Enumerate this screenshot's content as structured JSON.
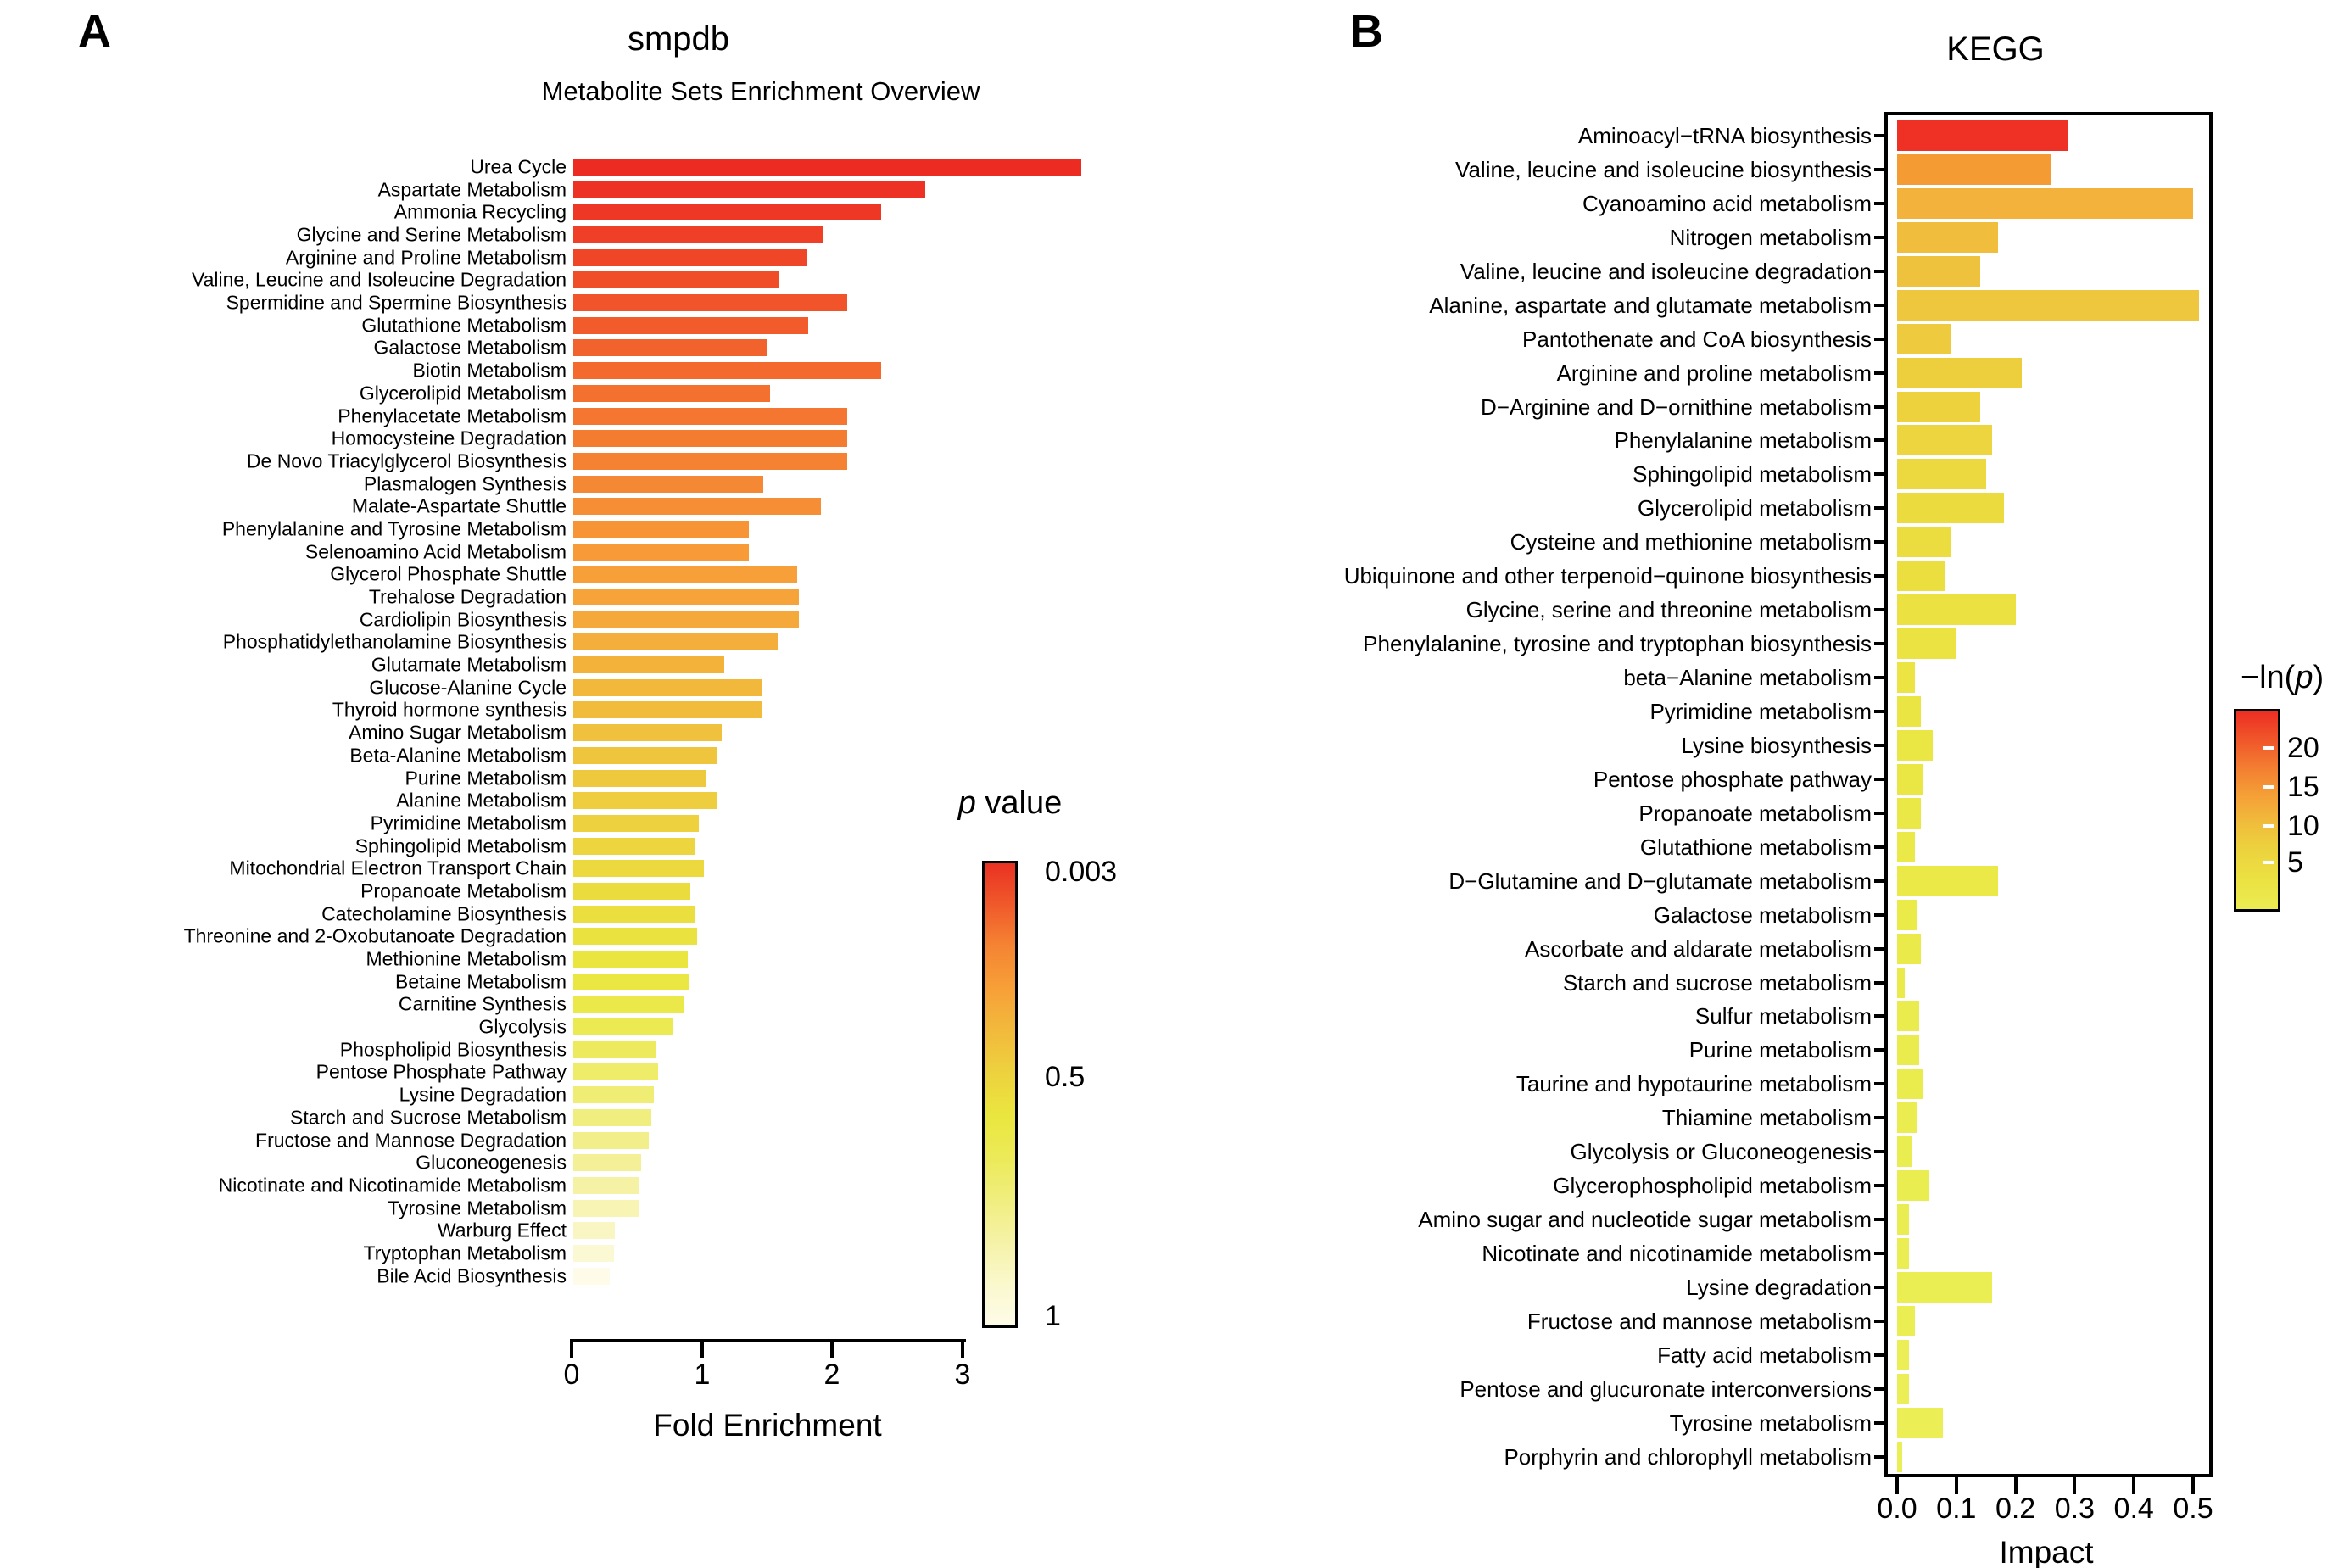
{
  "figure": {
    "background": "#ffffff"
  },
  "chart_data": [
    {
      "id": "smpdb",
      "type": "bar",
      "orientation": "horizontal",
      "panel_label": "A",
      "title": "smpdb",
      "subtitle": "Metabolite Sets Enrichment Overview",
      "xlabel": "Fold Enrichment",
      "xlim": [
        0,
        3
      ],
      "x_tick_labels": [
        "0",
        "1",
        "2",
        "3"
      ],
      "grid": false,
      "legend_position": "right",
      "colorbar": {
        "title_pre": "",
        "title_italic": "p",
        "title_post": " value",
        "tick_labels": [
          "0.003",
          "0.5",
          "1"
        ],
        "gradient": [
          "#E93123",
          "#F05A2B",
          "#F58533",
          "#F7A038",
          "#F2BA3C",
          "#EDD23E",
          "#EAE63F",
          "#ECEA58",
          "#F0EE7E",
          "#F5F2A7",
          "#FAF8CC",
          "#FEFCE8"
        ]
      },
      "categories": [
        "Urea Cycle",
        "Aspartate Metabolism",
        "Ammonia Recycling",
        "Glycine and Serine Metabolism",
        "Arginine and Proline Metabolism",
        "Valine, Leucine and Isoleucine Degradation",
        "Spermidine and Spermine Biosynthesis",
        "Glutathione Metabolism",
        "Galactose Metabolism",
        "Biotin Metabolism",
        "Glycerolipid Metabolism",
        "Phenylacetate Metabolism",
        "Homocysteine Degradation",
        "De Novo Triacylglycerol Biosynthesis",
        "Plasmalogen Synthesis",
        "Malate-Aspartate Shuttle",
        "Phenylalanine and Tyrosine Metabolism",
        "Selenoamino Acid Metabolism",
        "Glycerol Phosphate Shuttle",
        "Trehalose Degradation",
        "Cardiolipin Biosynthesis",
        "Phosphatidylethanolamine Biosynthesis",
        "Glutamate Metabolism",
        "Glucose-Alanine Cycle",
        "Thyroid hormone synthesis",
        "Amino Sugar Metabolism",
        "Beta-Alanine Metabolism",
        "Purine Metabolism",
        "Alanine Metabolism",
        "Pyrimidine Metabolism",
        "Sphingolipid Metabolism",
        "Mitochondrial Electron Transport Chain",
        "Propanoate Metabolism",
        "Catecholamine Biosynthesis",
        "Threonine and 2-Oxobutanoate Degradation",
        "Methionine Metabolism",
        "Betaine Metabolism",
        "Carnitine Synthesis",
        "Glycolysis",
        "Phospholipid Biosynthesis",
        "Pentose Phosphate Pathway",
        "Lysine Degradation",
        "Starch and Sucrose Metabolism",
        "Fructose and Mannose Degradation",
        "Gluconeogenesis",
        "Nicotinate and Nicotinamide Metabolism",
        "Tyrosine Metabolism",
        "Warburg Effect",
        "Tryptophan Metabolism",
        "Bile Acid Biosynthesis"
      ],
      "values": [
        3.9,
        2.7,
        2.36,
        1.92,
        1.79,
        1.58,
        2.1,
        1.8,
        1.49,
        2.36,
        1.51,
        2.1,
        2.1,
        2.1,
        1.46,
        1.9,
        1.35,
        1.35,
        1.72,
        1.73,
        1.73,
        1.57,
        1.16,
        1.45,
        1.45,
        1.14,
        1.1,
        1.02,
        1.1,
        0.96,
        0.93,
        1.0,
        0.9,
        0.94,
        0.95,
        0.88,
        0.89,
        0.85,
        0.76,
        0.64,
        0.65,
        0.62,
        0.6,
        0.58,
        0.52,
        0.51,
        0.51,
        0.32,
        0.31,
        0.28
      ],
      "bar_colors": [
        "#EC2B23",
        "#ED3124",
        "#EE3825",
        "#EF3F27",
        "#F04628",
        "#F04D29",
        "#F1542A",
        "#F25B2C",
        "#F2622D",
        "#F3692E",
        "#F3702F",
        "#F47630",
        "#F47C31",
        "#F58232",
        "#F58834",
        "#F68E35",
        "#F69436",
        "#F79A37",
        "#F79F38",
        "#F6A439",
        "#F5A93A",
        "#F4AE3B",
        "#F3B33B",
        "#F2B83C",
        "#F1BC3C",
        "#F0C13D",
        "#EFC53D",
        "#EEC93D",
        "#EECD3E",
        "#EDD13E",
        "#ECD53E",
        "#ECD93E",
        "#EBDC3E",
        "#EBDF3F",
        "#EAE23F",
        "#EAE53F",
        "#EAE743",
        "#EBE94A",
        "#ECEA53",
        "#EDEB5D",
        "#EEEC68",
        "#EFED73",
        "#F0EE7F",
        "#F2EF8B",
        "#F3F098",
        "#F5F2A6",
        "#F7F4B4",
        "#F9F6C3",
        "#FBF9D4",
        "#FEFCE8"
      ]
    },
    {
      "id": "kegg",
      "type": "bar",
      "orientation": "horizontal",
      "panel_label": "B",
      "title": "KEGG",
      "subtitle": "",
      "xlabel": "Impact",
      "xlim": [
        0,
        0.5
      ],
      "x_tick_labels": [
        "0.0",
        "0.1",
        "0.2",
        "0.3",
        "0.4",
        "0.5"
      ],
      "grid": false,
      "legend_position": "right",
      "colorbar": {
        "title_pre": "−ln(",
        "title_italic": "p",
        "title_post": ")",
        "tick_labels": [
          "20",
          "15",
          "10",
          "5"
        ],
        "gradient": [
          "#ED2E24",
          "#F0562A",
          "#F37E31",
          "#F5A037",
          "#F0BE3C",
          "#ECD43E",
          "#EBE243",
          "#EBEC52"
        ]
      },
      "categories": [
        "Aminoacyl−tRNA biosynthesis",
        "Valine, leucine and isoleucine biosynthesis",
        "Cyanoamino acid metabolism",
        "Nitrogen metabolism",
        "Valine, leucine and isoleucine degradation",
        "Alanine, aspartate and glutamate metabolism",
        "Pantothenate and CoA biosynthesis",
        "Arginine and proline metabolism",
        "D−Arginine and D−ornithine metabolism",
        "Phenylalanine metabolism",
        "Sphingolipid metabolism",
        "Glycerolipid metabolism",
        "Cysteine and methionine metabolism",
        "Ubiquinone and other terpenoid−quinone biosynthesis",
        "Glycine, serine and threonine metabolism",
        "Phenylalanine, tyrosine and tryptophan biosynthesis",
        "beta−Alanine metabolism",
        "Pyrimidine metabolism",
        "Lysine biosynthesis",
        "Pentose phosphate pathway",
        "Propanoate metabolism",
        "Glutathione metabolism",
        "D−Glutamine and D−glutamate metabolism",
        "Galactose metabolism",
        "Ascorbate and aldarate metabolism",
        "Starch and sucrose metabolism",
        "Sulfur metabolism",
        "Purine metabolism",
        "Taurine and hypotaurine metabolism",
        "Thiamine metabolism",
        "Glycolysis or Gluconeogenesis",
        "Glycerophospholipid metabolism",
        "Amino sugar and nucleotide sugar metabolism",
        "Nicotinate and nicotinamide metabolism",
        "Lysine degradation",
        "Fructose and mannose metabolism",
        "Fatty acid metabolism",
        "Pentose and glucuronate interconversions",
        "Tyrosine metabolism",
        "Porphyrin and chlorophyll metabolism"
      ],
      "values": [
        0.29,
        0.26,
        0.5,
        0.17,
        0.14,
        0.51,
        0.09,
        0.21,
        0.14,
        0.16,
        0.15,
        0.18,
        0.09,
        0.08,
        0.2,
        0.1,
        0.03,
        0.04,
        0.06,
        0.045,
        0.04,
        0.03,
        0.17,
        0.035,
        0.04,
        0.013,
        0.037,
        0.037,
        0.045,
        0.035,
        0.024,
        0.055,
        0.02,
        0.02,
        0.16,
        0.03,
        0.02,
        0.02,
        0.077,
        0.008
      ],
      "bar_colors": [
        "#EE3124",
        "#F59B33",
        "#F2B23B",
        "#F0BD3C",
        "#EFC23D",
        "#EEC73E",
        "#EECB3E",
        "#EDCF3E",
        "#EDD23E",
        "#ECD53E",
        "#ECD83F",
        "#ECDB3F",
        "#EBDD3F",
        "#EBDF3F",
        "#EBE140",
        "#EBE341",
        "#EBE442",
        "#EAE543",
        "#EAE644",
        "#EAE745",
        "#EAE846",
        "#EAE947",
        "#EAE948",
        "#EAEA49",
        "#EAEA4A",
        "#EAEB4B",
        "#EAEB4C",
        "#EAEC4D",
        "#EAEC4E",
        "#EAEC4F",
        "#EAED50",
        "#EAED50",
        "#EAED51",
        "#EAEE52",
        "#EAEE53",
        "#EAEE53",
        "#EBEE54",
        "#EBEF55",
        "#EBEF55",
        "#EBEF56"
      ]
    }
  ]
}
